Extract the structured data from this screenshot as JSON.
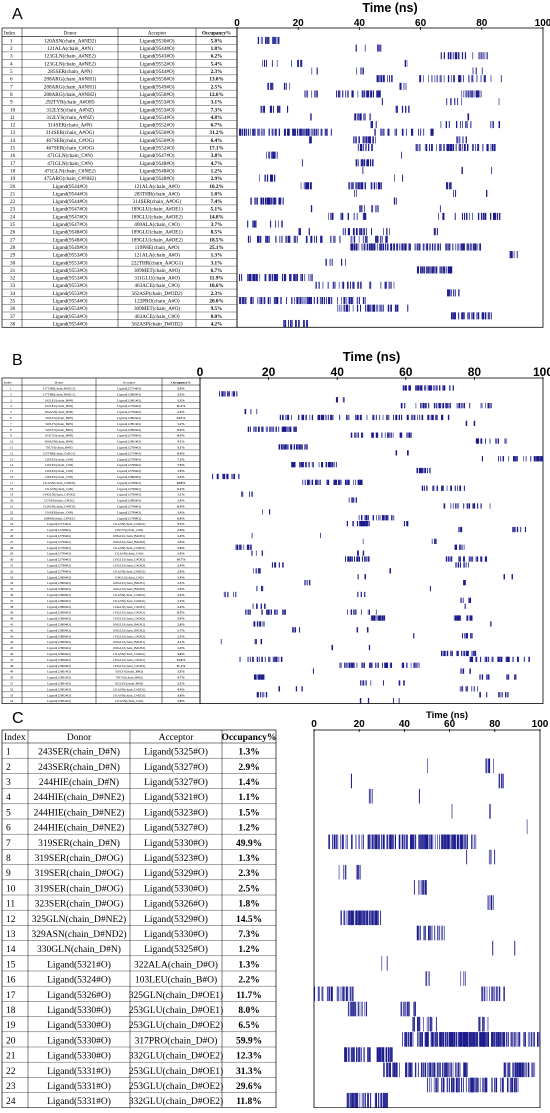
{
  "panels": [
    {
      "letter": "A",
      "axis_title": "Time (ns)",
      "headers": {
        "index": "Index",
        "donor": "Donor",
        "acceptor": "Acceptor",
        "occupancy": "Occupancy%"
      },
      "rows": [
        {
          "i": "1",
          "d": "120ASN(chain_A#ND2)",
          "a": "Ligand(9530#O)",
          "o": "5.8%"
        },
        {
          "i": "2",
          "d": "121ALA(chain_A#N)",
          "a": "Ligand(9544#O)",
          "o": "1.8%"
        },
        {
          "i": "3",
          "d": "123GLN(chain_A#NE2)",
          "a": "Ligand(9543#O)",
          "o": "6.2%"
        },
        {
          "i": "4",
          "d": "123GLN(chain_A#NE2)",
          "a": "Ligand(9552#O)",
          "o": "5.4%"
        },
        {
          "i": "5",
          "d": "285SER(chain_A#N)",
          "a": "Ligand(9544#O)",
          "o": "2.3%"
        },
        {
          "i": "6",
          "d": "288ARG(chain_A#NH1)",
          "a": "Ligand(9550#O)",
          "o": "13.0%"
        },
        {
          "i": "7",
          "d": "288ARG(chain_A#NH1)",
          "a": "Ligand(9549#O)",
          "o": "2.5%"
        },
        {
          "i": "8",
          "d": "288ARG(chain_A#NH2)",
          "a": "Ligand(9550#O)",
          "o": "12.6%"
        },
        {
          "i": "9",
          "d": "292TYR(chain_A#OH)",
          "a": "Ligand(9553#O)",
          "o": "3.1%"
        },
        {
          "i": "10",
          "d": "312LYS(chain_A#NZ)",
          "a": "Ligand(9553#O)",
          "o": "7.3%"
        },
        {
          "i": "11",
          "d": "312LYS(chain_A#NZ)",
          "a": "Ligand(9554#O)",
          "o": "4.8%"
        },
        {
          "i": "12",
          "d": "314SER(chain_A#N)",
          "a": "Ligand(9552#O)",
          "o": "6.7%"
        },
        {
          "i": "13",
          "d": "314SER(chain_A#OG)",
          "a": "Ligand(9550#O)",
          "o": "31.2%"
        },
        {
          "i": "14",
          "d": "467SER(chain_C#OG)",
          "a": "Ligand(9550#O)",
          "o": "6.4%"
        },
        {
          "i": "15",
          "d": "467SER(chain_C#OG)",
          "a": "Ligand(9552#O)",
          "o": "17.1%"
        },
        {
          "i": "16",
          "d": "471GLN(chain_C#N)",
          "a": "Ligand(9547#O)",
          "o": "3.8%"
        },
        {
          "i": "17",
          "d": "471GLN(chain_C#N)",
          "a": "Ligand(9548#O)",
          "o": "4.7%"
        },
        {
          "i": "18",
          "d": "471GLN(chain_C#NE2)",
          "a": "Ligand(9548#O)",
          "o": "1.2%"
        },
        {
          "i": "19",
          "d": "475ARG(chain_C#NH2)",
          "a": "Ligand(9548#O)",
          "o": "2.9%"
        },
        {
          "i": "20",
          "d": "Ligand(9544#O)",
          "a": "121ALA(chain_A#O)",
          "o": "10.2%"
        },
        {
          "i": "21",
          "d": "Ligand(9544#O)",
          "a": "283THR(chain_A#O)",
          "o": "1.8%"
        },
        {
          "i": "22",
          "d": "Ligand(9544#O)",
          "a": "314SER(chain_A#OG)",
          "o": "7.4%"
        },
        {
          "i": "23",
          "d": "Ligand(9547#O)",
          "a": "189GLU(chain_A#OE1)",
          "o": "5.1%"
        },
        {
          "i": "24",
          "d": "Ligand(9547#O)",
          "a": "189GLU(chain_A#OE2)",
          "o": "14.8%"
        },
        {
          "i": "25",
          "d": "Ligand(9547#O)",
          "a": "469ALA(chain_C#O)",
          "o": "3.7%"
        },
        {
          "i": "26",
          "d": "Ligand(9548#O)",
          "a": "189GLU(chain_A#OE1)",
          "o": "8.5%"
        },
        {
          "i": "27",
          "d": "Ligand(9548#O)",
          "a": "189GLU(chain_A#OE2)",
          "o": "18.5%"
        },
        {
          "i": "28",
          "d": "Ligand(9549#O)",
          "a": "119PHE(chain_A#O)",
          "o": "25.1%"
        },
        {
          "i": "29",
          "d": "Ligand(9553#O)",
          "a": "121ALA(chain_A#O)",
          "o": "1.3%"
        },
        {
          "i": "30",
          "d": "Ligand(9553#O)",
          "a": "222THR(chain_A#OG1)",
          "o": "3.1%"
        },
        {
          "i": "31",
          "d": "Ligand(9553#O)",
          "a": "309MET(chain_A#O)",
          "o": "6.7%"
        },
        {
          "i": "32",
          "d": "Ligand(9553#O)",
          "a": "311GLU(chain_A#O)",
          "o": "11.9%"
        },
        {
          "i": "33",
          "d": "Ligand(9553#O)",
          "a": "463ACE(chain_C#O)",
          "o": "10.6%"
        },
        {
          "i": "34",
          "d": "Ligand(9553#O)",
          "a": "562ASP(chain_D#OD2)",
          "o": "2.3%"
        },
        {
          "i": "35",
          "d": "Ligand(9554#O)",
          "a": "122PRO(chain_A#O)",
          "o": "20.0%"
        },
        {
          "i": "36",
          "d": "Ligand(9554#O)",
          "a": "309MET(chain_A#O)",
          "o": "9.5%"
        },
        {
          "i": "37",
          "d": "Ligand(9554#O)",
          "a": "463ACE(chain_C#O)",
          "o": "8.0%"
        },
        {
          "i": "38",
          "d": "Ligand(9554#O)",
          "a": "562ASP(chain_D#OD2)",
          "o": "4.2%"
        }
      ]
    },
    {
      "letter": "B",
      "axis_title": "Time (ns)",
      "headers": {
        "index": "Index",
        "donor": "Donor",
        "acceptor": "Acceptor",
        "occupancy": "Occupancy%"
      },
      "rows": [
        {
          "i": "1",
          "d": "317THR(chain_B#OG1)",
          "a": "Ligand(12754#O)",
          "o": "5.9%"
        },
        {
          "i": "2",
          "d": "317THR(chain_B#OG1)",
          "a": "Ligand(12800#O)",
          "o": "3.5%"
        },
        {
          "i": "3",
          "d": "162LEU(chain_B#N)",
          "a": "Ligand(12801#O)",
          "o": "1.3%"
        },
        {
          "i": "4",
          "d": "102LEU(chain_B#N)",
          "a": "Ligand(12799#O)",
          "o": "11.2%"
        },
        {
          "i": "5",
          "d": "304ASN(chain_B#N)",
          "a": "Ligand(12799#O)",
          "o": "2.4%"
        },
        {
          "i": "6",
          "d": "310LYS(chain_B#N)",
          "a": "Ligand(12802#O)",
          "o": "24.3%"
        },
        {
          "i": "7",
          "d": "310LYS(chain_B#N)",
          "a": "Ligand(12801#O)",
          "o": "1.2%"
        },
        {
          "i": "8",
          "d": "310LYS(chain_B#N)",
          "a": "Ligand(12800#O)",
          "o": "8.4%"
        },
        {
          "i": "9",
          "d": "103CYS(chain_B#N)",
          "a": "Ligand(12799#O)",
          "o": "8.4%"
        },
        {
          "i": "10",
          "d": "304ASN(chain_B#N)",
          "a": "Ligand(12801#O)",
          "o": "4.1%"
        },
        {
          "i": "11",
          "d": "79CYS(chain_B#N)",
          "a": "Ligand(12799#O)",
          "o": "5.1%"
        },
        {
          "i": "12",
          "d": "125THR(chain_C#OG1)",
          "a": "Ligand(12754#O)",
          "o": "0.9%"
        },
        {
          "i": "13",
          "d": "129LEU(chain_C#N)",
          "a": "Ligand(12799#O)",
          "o": "7.3%"
        },
        {
          "i": "14",
          "d": "129LEU(chain_C#N)",
          "a": "Ligand(12798#O)",
          "o": "7.9%"
        },
        {
          "i": "15",
          "d": "126LEU(chain_C#N)",
          "a": "Ligand(12799#O)",
          "o": "1.9%"
        },
        {
          "i": "16",
          "d": "128LEU(chain_C#N)",
          "a": "Ligand(12800#O)",
          "o": "3.4%"
        },
        {
          "i": "17",
          "d": "131ASN(chain_C#ND2)",
          "a": "Ligand(12798#O)",
          "o": "10.8%"
        },
        {
          "i": "18",
          "d": "131ASN(chain_C#N)",
          "a": "Ligand(12798#O)",
          "o": "6.2%"
        },
        {
          "i": "19",
          "d": "134GLN(chain_C#NE2)",
          "a": "Ligand(12799#O)",
          "o": "1.1%"
        },
        {
          "i": "20",
          "d": "317SER(chain_C#OG)",
          "a": "Ligand(12800#O)",
          "o": "1.4%"
        },
        {
          "i": "21",
          "d": "153ASN(chain_C#ND2)",
          "a": "Ligand(12798#O)",
          "o": "6.9%"
        },
        {
          "i": "22",
          "d": "156SER(chain_C#N)",
          "a": "Ligand(12799#O)",
          "o": "1.4%"
        },
        {
          "i": "23",
          "d": "160HIS(chain_C#NE2)",
          "a": "Ligand(12798#O)",
          "o": "6.0%"
        },
        {
          "i": "24",
          "d": "Ligand(12754#O)",
          "a": "131ASN(chain_C#OD1)",
          "o": "5.3%"
        },
        {
          "i": "25",
          "d": "Ligand(12798#O)",
          "a": "156CYS(chain_C#O)",
          "o": "2.0%"
        },
        {
          "i": "26",
          "d": "Ligand(12799#O)",
          "a": "100GLU(chain_B#OE1)",
          "o": "1.4%"
        },
        {
          "i": "27",
          "d": "Ligand(12799#O)",
          "a": "100GLU(chain_B#OE2)",
          "o": "1.4%"
        },
        {
          "i": "28",
          "d": "Ligand(12799#O)",
          "a": "131ASN(chain_C#OD1)",
          "o": "3.6%"
        },
        {
          "i": "29",
          "d": "Ligand(12799#O)",
          "a": "131ASN(chain_C#O)",
          "o": "1.4%"
        },
        {
          "i": "30",
          "d": "Ligand(12799#O)",
          "a": "135GLU(chain_C#OE1)",
          "o": "10.7%"
        },
        {
          "i": "31",
          "d": "Ligand(12799#O)",
          "a": "135GLU(chain_C#OE2)",
          "o": "2.4%"
        },
        {
          "i": "32",
          "d": "Ligand(12799#O)",
          "a": "131ASN(chain_C#OD1)",
          "o": "2.9%"
        },
        {
          "i": "33",
          "d": "Ligand(12800#O)",
          "a": "159GLU(chain_C#O)",
          "o": "1.4%"
        },
        {
          "i": "34",
          "d": "Ligand(12800#O)",
          "a": "100GLU(chain_B#OE1)",
          "o": "1.3%"
        },
        {
          "i": "35",
          "d": "Ligand(12800#O)",
          "a": "100GLU(chain_B#OE2)",
          "o": "1.4%"
        },
        {
          "i": "36",
          "d": "Ligand(12800#O)",
          "a": "131ASN(chain_C#OD1)",
          "o": "3.2%"
        },
        {
          "i": "37",
          "d": "Ligand(12800#O)",
          "a": "131ASN(chain_C#OD1)",
          "o": "1.2%"
        },
        {
          "i": "38",
          "d": "Ligand(12800#O)",
          "a": "134GLN(chain_C#OE1)",
          "o": "3.4%"
        },
        {
          "i": "39",
          "d": "Ligand(12800#O)",
          "a": "135GLU(chain_C#OE1)",
          "o": "8.5%"
        },
        {
          "i": "40",
          "d": "Ligand(12800#O)",
          "a": "135GLU(chain_C#OE2)",
          "o": "5.4%"
        },
        {
          "i": "41",
          "d": "Ligand(12800#O)",
          "a": "100GLU(chain_B#OE1)",
          "o": "2.6%"
        },
        {
          "i": "42",
          "d": "Ligand(12800#O)",
          "a": "100GLU(chain_B#OE2)",
          "o": "1.7%"
        },
        {
          "i": "43",
          "d": "Ligand(12800#O)",
          "a": "135GLU(chain_C#OE2)",
          "o": "1.3%"
        },
        {
          "i": "44",
          "d": "Ligand(12800#O)",
          "a": "100GLU(chain_B#OE1)",
          "o": "3.1%"
        },
        {
          "i": "45",
          "d": "Ligand(12800#O)",
          "a": "100GLU(chain_B#OE2)",
          "o": "1.4%"
        },
        {
          "i": "46",
          "d": "Ligand(12800#O)",
          "a": "131ASN(chain_C#OD1)",
          "o": "4.6%"
        },
        {
          "i": "47",
          "d": "Ligand(12800#O)",
          "a": "135GLU(chain_C#OE1)",
          "o": "13.0%"
        },
        {
          "i": "48",
          "d": "Ligand(12800#O)",
          "a": "135GLU(chain_C#OE2)",
          "o": "11.1%"
        },
        {
          "i": "49",
          "d": "Ligand(12801#O)",
          "a": "310LYS(chain_B#O)",
          "o": "1.5%"
        },
        {
          "i": "50",
          "d": "Ligand(12801#O)",
          "a": "79CYS(chain_B#O)",
          "o": "4.7%"
        },
        {
          "i": "51",
          "d": "Ligand(12801#O)",
          "a": "102LEU(chain_B#O)",
          "o": "3.2%"
        },
        {
          "i": "52",
          "d": "Ligand(12802#O)",
          "a": "131ASN(chain_C#OD1)",
          "o": "4.4%"
        },
        {
          "i": "53",
          "d": "Ligand(12802#O)",
          "a": "131ASN(chain_C#OD1)",
          "o": "3.8%"
        },
        {
          "i": "54",
          "d": "Ligand(12802#O)",
          "a": "131ASN(chain_C#O)",
          "o": "1.8%"
        }
      ]
    },
    {
      "letter": "C",
      "axis_title": "Time (ns)",
      "headers": {
        "index": "Index",
        "donor": "Donor",
        "acceptor": "Acceptor",
        "occupancy": "Occupancy%"
      },
      "rows": [
        {
          "i": "1",
          "d": "243SER(chain_D#N)",
          "a": "Ligand(5325#O)",
          "o": "1.3%"
        },
        {
          "i": "2",
          "d": "243SER(chain_D#N)",
          "a": "Ligand(5327#O)",
          "o": "2.9%"
        },
        {
          "i": "3",
          "d": "244HIE(chain_D#N)",
          "a": "Ligand(5327#O)",
          "o": "1.4%"
        },
        {
          "i": "4",
          "d": "244HIE(chain_D#NE2)",
          "a": "Ligand(5321#O)",
          "o": "1.1%"
        },
        {
          "i": "5",
          "d": "244HIE(chain_D#NE2)",
          "a": "Ligand(5323#O)",
          "o": "1.5%"
        },
        {
          "i": "6",
          "d": "244HIE(chain_D#NE2)",
          "a": "Ligand(5327#O)",
          "o": "1.2%"
        },
        {
          "i": "7",
          "d": "319SER(chain_D#N)",
          "a": "Ligand(5330#O)",
          "o": "49.9%"
        },
        {
          "i": "8",
          "d": "319SER(chain_D#OG)",
          "a": "Ligand(5323#O)",
          "o": "1.3%"
        },
        {
          "i": "9",
          "d": "319SER(chain_D#OG)",
          "a": "Ligand(5329#O)",
          "o": "2.3%"
        },
        {
          "i": "10",
          "d": "319SER(chain_D#OG)",
          "a": "Ligand(5330#O)",
          "o": "2.5%"
        },
        {
          "i": "11",
          "d": "323SER(chain_D#OG)",
          "a": "Ligand(5326#O)",
          "o": "1.8%"
        },
        {
          "i": "12",
          "d": "325GLN(chain_D#NE2)",
          "a": "Ligand(5329#O)",
          "o": "14.5%"
        },
        {
          "i": "13",
          "d": "329ASN(chain_D#ND2)",
          "a": "Ligand(5330#O)",
          "o": "7.3%"
        },
        {
          "i": "14",
          "d": "330GLN(chain_D#N)",
          "a": "Ligand(5325#O)",
          "o": "1.2%"
        },
        {
          "i": "15",
          "d": "Ligand(5321#O)",
          "a": "322ALA(chain_D#O)",
          "o": "1.3%"
        },
        {
          "i": "16",
          "d": "Ligand(5324#O)",
          "a": "103LEU(chain_B#O)",
          "o": "2.2%"
        },
        {
          "i": "17",
          "d": "Ligand(5326#O)",
          "a": "325GLN(chain_D#OE1)",
          "o": "11.7%"
        },
        {
          "i": "18",
          "d": "Ligand(5330#O)",
          "a": "253GLU(chain_D#OE1)",
          "o": "8.0%"
        },
        {
          "i": "19",
          "d": "Ligand(5330#O)",
          "a": "253GLU(chain_D#OE2)",
          "o": "6.5%"
        },
        {
          "i": "20",
          "d": "Ligand(5330#O)",
          "a": "317PRO(chain_D#O)",
          "o": "59.9%"
        },
        {
          "i": "21",
          "d": "Ligand(5330#O)",
          "a": "332GLU(chain_D#OE2)",
          "o": "12.3%"
        },
        {
          "i": "22",
          "d": "Ligand(5331#O)",
          "a": "253GLU(chain_D#OE1)",
          "o": "31.3%"
        },
        {
          "i": "23",
          "d": "Ligand(5331#O)",
          "a": "253GLU(chain_D#OE2)",
          "o": "29.6%"
        },
        {
          "i": "24",
          "d": "Ligand(5331#O)",
          "a": "332GLU(chain_D#OE2)",
          "o": "11.8%"
        }
      ]
    }
  ],
  "chart_data": [
    {
      "type": "heatmap",
      "panel": "A",
      "xlabel": "Time (ns)",
      "xlim": [
        0,
        100
      ],
      "xticks": [
        0,
        20,
        40,
        60,
        80,
        100
      ],
      "color": "#1a1a8c",
      "y": "Index 1-38",
      "occupancy": [
        5.8,
        1.8,
        6.2,
        5.4,
        2.3,
        13.0,
        2.5,
        12.6,
        3.1,
        7.3,
        4.8,
        6.7,
        31.2,
        6.4,
        17.1,
        3.8,
        4.7,
        1.2,
        2.9,
        10.2,
        1.8,
        7.4,
        5.1,
        14.8,
        3.7,
        8.5,
        18.5,
        25.1,
        1.3,
        3.1,
        6.7,
        11.9,
        10.6,
        2.3,
        20.0,
        9.5,
        8.0,
        4.2
      ]
    },
    {
      "type": "heatmap",
      "panel": "B",
      "xlabel": "Time (ns)",
      "xlim": [
        0,
        100
      ],
      "xticks": [
        0,
        20,
        40,
        60,
        80,
        100
      ],
      "color": "#1a1a8c",
      "y": "Index 1-54",
      "occupancy": [
        5.9,
        3.5,
        1.3,
        11.2,
        2.4,
        24.3,
        1.2,
        8.4,
        8.4,
        4.1,
        5.1,
        0.9,
        7.3,
        7.9,
        1.9,
        3.4,
        10.8,
        6.2,
        1.1,
        1.4,
        6.9,
        1.4,
        6.0,
        5.3,
        2.0,
        1.4,
        1.4,
        3.6,
        1.4,
        10.7,
        2.4,
        2.9,
        1.4,
        1.3,
        1.4,
        3.2,
        1.2,
        3.4,
        8.5,
        5.4,
        2.6,
        1.7,
        1.3,
        3.1,
        1.4,
        4.6,
        13.0,
        11.1,
        1.5,
        4.7,
        3.2,
        4.4,
        3.8,
        1.8
      ]
    },
    {
      "type": "heatmap",
      "panel": "C",
      "xlabel": "Time (ns)",
      "xlim": [
        0,
        100
      ],
      "xticks": [
        0,
        20,
        40,
        60,
        80,
        100
      ],
      "color": "#1a1a8c",
      "y": "Index 1-24",
      "occupancy": [
        1.3,
        2.9,
        1.4,
        1.1,
        1.5,
        1.2,
        49.9,
        1.3,
        2.3,
        2.5,
        1.8,
        14.5,
        7.3,
        1.2,
        1.3,
        2.2,
        11.7,
        8.0,
        6.5,
        59.9,
        12.3,
        31.3,
        29.6,
        11.8
      ]
    }
  ]
}
